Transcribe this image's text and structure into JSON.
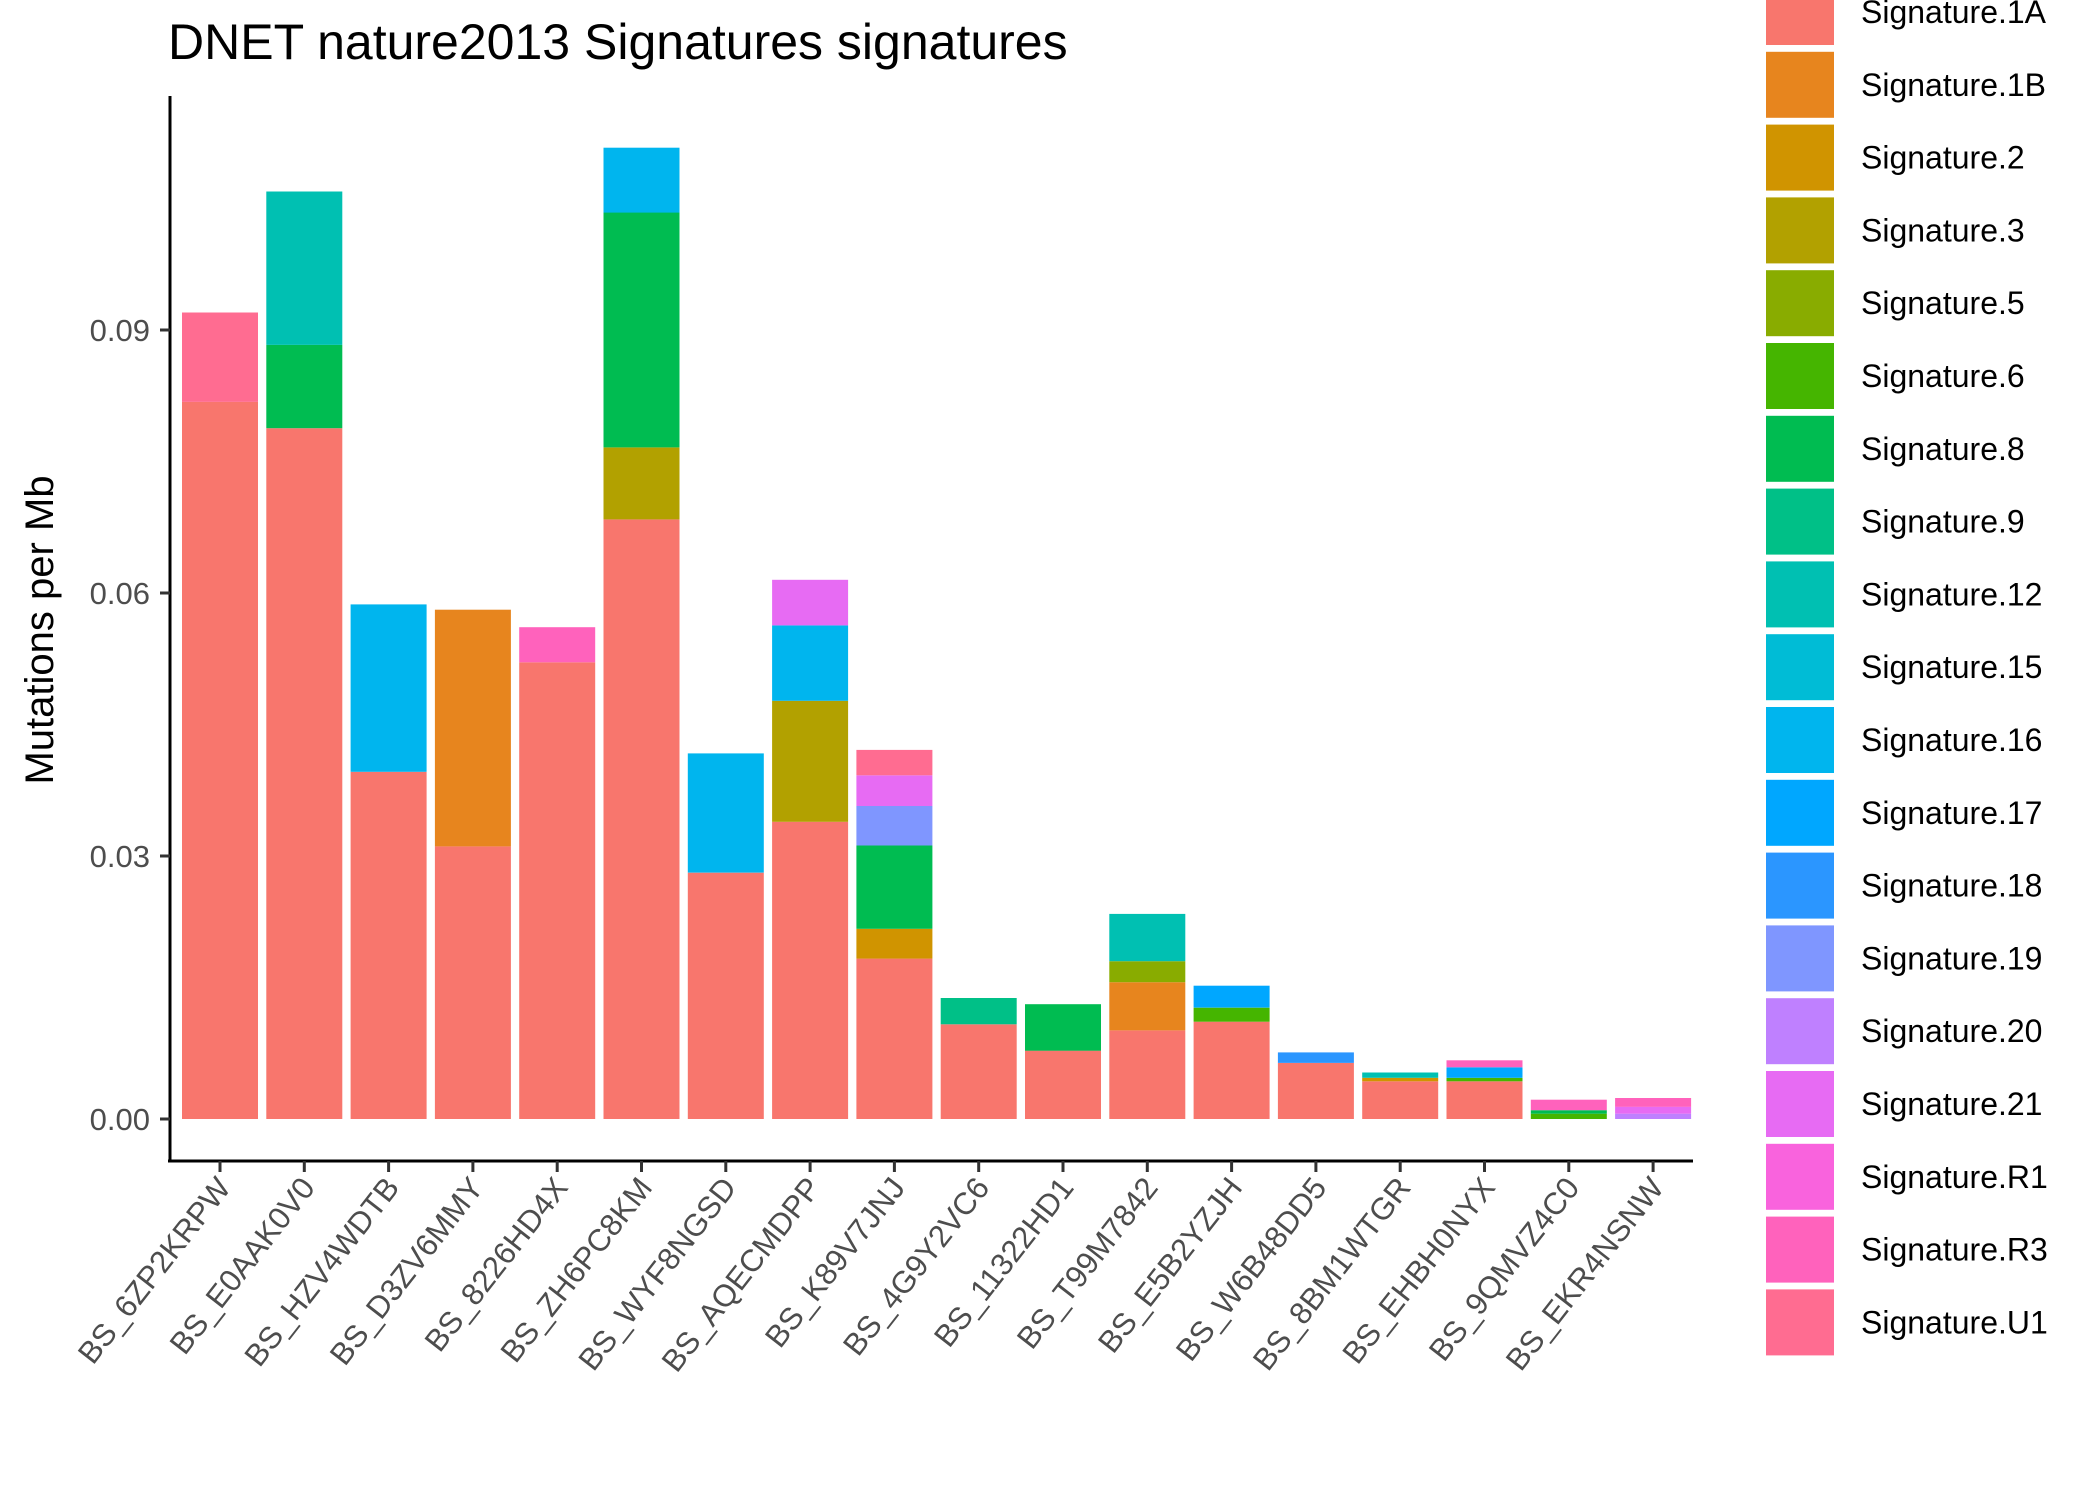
{
  "chart_data": {
    "type": "bar",
    "stacked": true,
    "title": "DNET nature2013 Signatures signatures",
    "xlabel": "",
    "ylabel": "Mutations per Mb",
    "ylim": [
      0,
      0.118
    ],
    "yticks": [
      0.0,
      0.03,
      0.06,
      0.09
    ],
    "ytick_labels": [
      "0.00",
      "0.03",
      "0.06",
      "0.09"
    ],
    "grid": false,
    "legend_position": "right",
    "categories": [
      "BS_6ZP2KRPW",
      "BS_E0AAK0V0",
      "BS_HZV4WDTB",
      "BS_D3ZV6MMY",
      "BS_8226HD4X",
      "BS_ZH6PC8KM",
      "BS_WYF8NGSD",
      "BS_AQECMDPP",
      "BS_K89V7JNJ",
      "BS_4G9Y2VC6",
      "BS_11322HD1",
      "BS_T99M7842",
      "BS_E5B2YZJH",
      "BS_W6B48DD5",
      "BS_8BM1WTGR",
      "BS_EHBH0NYX",
      "BS_9QMVZ4C0",
      "BS_EKR4NSNW"
    ],
    "series": [
      {
        "name": "Signature.1A",
        "color": "#F8766D",
        "values": [
          0.0818,
          0.0788,
          0.0396,
          0.0311,
          0.0521,
          0.0684,
          0.0281,
          0.0339,
          0.0183,
          0.0108,
          0.0078,
          0.0101,
          0.0111,
          0.0064,
          0.0043,
          0.0043,
          0.0,
          0.0
        ]
      },
      {
        "name": "Signature.1B",
        "color": "#E7851E",
        "values": [
          0,
          0,
          0,
          0.027,
          0,
          0,
          0,
          0,
          0,
          0,
          0,
          0.0055,
          0,
          0,
          0,
          0,
          0,
          0
        ]
      },
      {
        "name": "Signature.2",
        "color": "#D09400",
        "values": [
          0,
          0,
          0,
          0,
          0,
          0,
          0,
          0,
          0.0034,
          0,
          0,
          0,
          0,
          0,
          0.0004,
          0,
          0,
          0
        ]
      },
      {
        "name": "Signature.3",
        "color": "#B2A100",
        "values": [
          0,
          0,
          0,
          0,
          0,
          0.0082,
          0,
          0.0138,
          0,
          0,
          0,
          0,
          0,
          0,
          0,
          0,
          0,
          0
        ]
      },
      {
        "name": "Signature.5",
        "color": "#89AC00",
        "values": [
          0,
          0,
          0,
          0,
          0,
          0,
          0,
          0,
          0,
          0,
          0,
          0.0024,
          0,
          0,
          0,
          0,
          0,
          0
        ]
      },
      {
        "name": "Signature.6",
        "color": "#45B500",
        "values": [
          0,
          0,
          0,
          0,
          0,
          0,
          0,
          0,
          0,
          0,
          0,
          0,
          0.0016,
          0,
          0,
          0.0004,
          0.0006,
          0
        ]
      },
      {
        "name": "Signature.8",
        "color": "#00BC51",
        "values": [
          0,
          0.0095,
          0,
          0,
          0,
          0.0268,
          0,
          0,
          0.0095,
          0,
          0.0053,
          0,
          0,
          0,
          0,
          0,
          0.0004,
          0
        ]
      },
      {
        "name": "Signature.9",
        "color": "#00C087",
        "values": [
          0,
          0,
          0,
          0,
          0,
          0,
          0,
          0,
          0,
          0.003,
          0,
          0,
          0,
          0,
          0,
          0,
          0,
          0
        ]
      },
      {
        "name": "Signature.12",
        "color": "#00C0B2",
        "values": [
          0,
          0.0175,
          0,
          0,
          0,
          0,
          0,
          0,
          0,
          0,
          0,
          0.0054,
          0,
          0,
          0.0006,
          0,
          0,
          0
        ]
      },
      {
        "name": "Signature.15",
        "color": "#00BCD6",
        "values": [
          0,
          0,
          0,
          0,
          0,
          0,
          0,
          0,
          0,
          0,
          0,
          0,
          0,
          0,
          0,
          0,
          0,
          0
        ]
      },
      {
        "name": "Signature.16",
        "color": "#00B5EE",
        "values": [
          0,
          0,
          0.0191,
          0,
          0,
          0.0074,
          0.0136,
          0.0086,
          0,
          0,
          0,
          0,
          0,
          0,
          0,
          0,
          0,
          0
        ]
      },
      {
        "name": "Signature.17",
        "color": "#00A7FF",
        "values": [
          0,
          0,
          0,
          0,
          0,
          0,
          0,
          0,
          0,
          0,
          0,
          0,
          0.0025,
          0,
          0,
          0.0012,
          0,
          0
        ]
      },
      {
        "name": "Signature.18",
        "color": "#2B96FF",
        "values": [
          0,
          0,
          0,
          0,
          0,
          0,
          0,
          0,
          0,
          0,
          0,
          0,
          0,
          0.0012,
          0,
          0,
          0,
          0
        ]
      },
      {
        "name": "Signature.19",
        "color": "#7F96FF",
        "values": [
          0,
          0,
          0,
          0,
          0,
          0,
          0,
          0,
          0.0045,
          0,
          0,
          0,
          0,
          0,
          0,
          0,
          0,
          0
        ]
      },
      {
        "name": "Signature.20",
        "color": "#BF80FF",
        "values": [
          0,
          0,
          0,
          0,
          0,
          0,
          0,
          0,
          0,
          0,
          0,
          0,
          0,
          0,
          0,
          0,
          0,
          0.0006
        ]
      },
      {
        "name": "Signature.21",
        "color": "#E76BF3",
        "values": [
          0,
          0,
          0,
          0,
          0,
          0,
          0,
          0.0052,
          0.0035,
          0,
          0,
          0,
          0,
          0,
          0,
          0,
          0,
          0.0008
        ]
      },
      {
        "name": "Signature.R1",
        "color": "#F963DD",
        "values": [
          0,
          0,
          0,
          0,
          0,
          0,
          0,
          0,
          0,
          0,
          0,
          0,
          0,
          0,
          0,
          0,
          0,
          0
        ]
      },
      {
        "name": "Signature.R3",
        "color": "#FF62BC",
        "values": [
          0,
          0,
          0,
          0,
          0.004,
          0,
          0,
          0,
          0,
          0,
          0,
          0,
          0,
          0,
          0,
          0.0008,
          0.0012,
          0.001
        ]
      },
      {
        "name": "Signature.U1",
        "color": "#FF6C91",
        "values": [
          0.0102,
          0,
          0,
          0,
          0,
          0,
          0,
          0,
          0.0029,
          0,
          0,
          0,
          0,
          0,
          0,
          0,
          0,
          0
        ]
      }
    ]
  }
}
